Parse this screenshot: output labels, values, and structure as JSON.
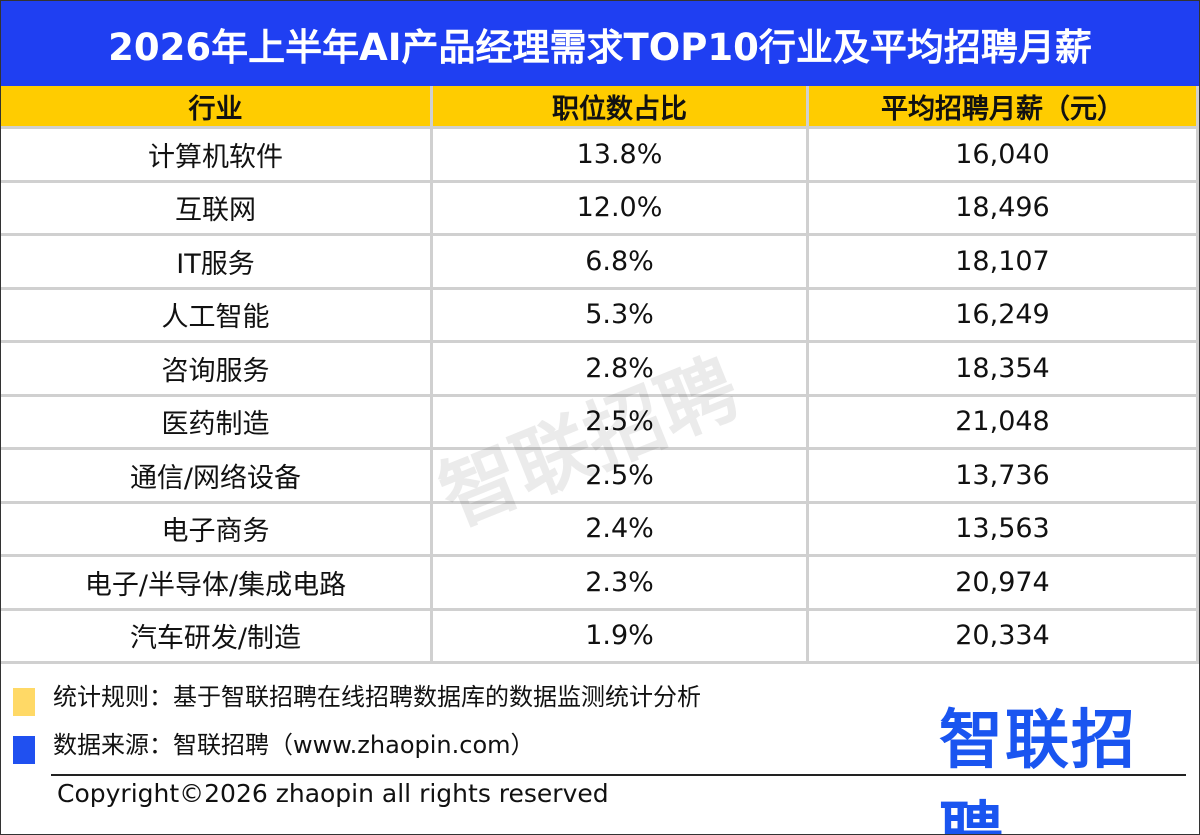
{
  "title": "2026年上半年AI产品经理需求TOP10行业及平均招聘月薪",
  "table": {
    "header": [
      "行业",
      "职位数占比",
      "平均招聘月薪（元）"
    ],
    "rows": [
      [
        "计算机软件",
        "13.8%",
        "16,040"
      ],
      [
        "互联网",
        "12.0%",
        "18,496"
      ],
      [
        "IT服务",
        "6.8%",
        "18,107"
      ],
      [
        "人工智能",
        "5.3%",
        "16,249"
      ],
      [
        "咨询服务",
        "2.8%",
        "18,354"
      ],
      [
        "医药制造",
        "2.5%",
        "21,048"
      ],
      [
        "通信/网络设备",
        "2.5%",
        "13,736"
      ],
      [
        "电子商务",
        "2.4%",
        "13,563"
      ],
      [
        "电子/半导体/集成电路",
        "2.3%",
        "20,974"
      ],
      [
        "汽车研发/制造",
        "1.9%",
        "20,334"
      ]
    ]
  },
  "watermark": "智联招聘",
  "footer": {
    "notes": [
      "统计规则：基于智联招聘在线招聘数据库的数据监测统计分析",
      "数据来源：智联招聘（www.zhaopin.com）"
    ],
    "logo": "智联招聘"
  },
  "copyright": "Copyright©2026 zhaopin all rights reserved"
}
